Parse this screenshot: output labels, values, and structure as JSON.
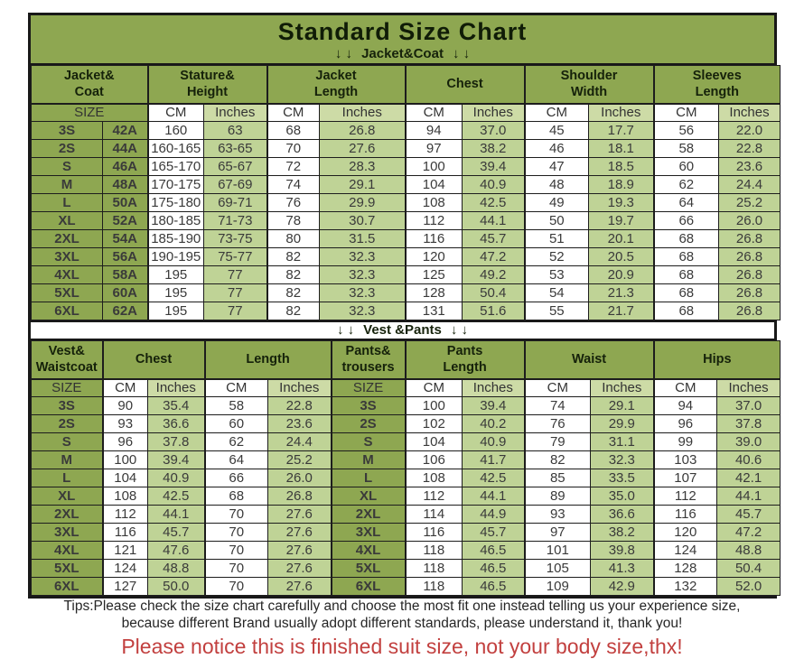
{
  "title": "Standard Size Chart",
  "jacket_divider": {
    "arrows_left": "↓ ↓",
    "label": "Jacket&Coat",
    "arrows_right": "↓ ↓"
  },
  "vest_divider": {
    "arrows_left": "↓ ↓",
    "label": "Vest &Pants",
    "arrows_right": "↓ ↓"
  },
  "footer": {
    "tips_line1": "Tips:Please check the size chart carefully and choose the most fit one instead telling us your experience size,",
    "tips_line2": "because different Brand usually adopt different standards, please understand it, thank you!",
    "notice": "Please notice this is finished suit size, not your body size,thx!"
  },
  "colors": {
    "header_green": "#8ea751",
    "data_cell_green": "#bfd396",
    "unit_cell_green": "#cddba6",
    "cell_white": "#ffffff",
    "border_black": "#181818",
    "notice_red": "#c2403f"
  },
  "chart_data": [
    {
      "type": "table",
      "title": "Jacket&Coat",
      "column_groups": [
        {
          "label": "Jacket&\nCoat",
          "span": 2
        },
        {
          "label": "Stature&\nHeight",
          "span": 2
        },
        {
          "label": "Jacket\nLength",
          "span": 2
        },
        {
          "label": "Chest",
          "span": 2
        },
        {
          "label": "Shoulder\nWidth",
          "span": 2
        },
        {
          "label": "Sleeves\nLength",
          "span": 2
        }
      ],
      "unit_row": [
        {
          "label": "SIZE",
          "span": 2,
          "kind": "size"
        },
        {
          "label": "CM",
          "span": 1,
          "kind": "cm"
        },
        {
          "label": "Inches",
          "span": 1,
          "kind": "inches"
        },
        {
          "label": "CM",
          "span": 1,
          "kind": "cm"
        },
        {
          "label": "Inches",
          "span": 1,
          "kind": "inches"
        },
        {
          "label": "CM",
          "span": 1,
          "kind": "cm"
        },
        {
          "label": "Inches",
          "span": 1,
          "kind": "inches"
        },
        {
          "label": "CM",
          "span": 1,
          "kind": "cm"
        },
        {
          "label": "Inches",
          "span": 1,
          "kind": "inches"
        },
        {
          "label": "CM",
          "span": 1,
          "kind": "cm"
        },
        {
          "label": "Inches",
          "span": 1,
          "kind": "inches"
        }
      ],
      "rows": [
        [
          "3S",
          "42A",
          "160",
          "63",
          "68",
          "26.8",
          "94",
          "37.0",
          "45",
          "17.7",
          "56",
          "22.0"
        ],
        [
          "2S",
          "44A",
          "160-165",
          "63-65",
          "70",
          "27.6",
          "97",
          "38.2",
          "46",
          "18.1",
          "58",
          "22.8"
        ],
        [
          "S",
          "46A",
          "165-170",
          "65-67",
          "72",
          "28.3",
          "100",
          "39.4",
          "47",
          "18.5",
          "60",
          "23.6"
        ],
        [
          "M",
          "48A",
          "170-175",
          "67-69",
          "74",
          "29.1",
          "104",
          "40.9",
          "48",
          "18.9",
          "62",
          "24.4"
        ],
        [
          "L",
          "50A",
          "175-180",
          "69-71",
          "76",
          "29.9",
          "108",
          "42.5",
          "49",
          "19.3",
          "64",
          "25.2"
        ],
        [
          "XL",
          "52A",
          "180-185",
          "71-73",
          "78",
          "30.7",
          "112",
          "44.1",
          "50",
          "19.7",
          "66",
          "26.0"
        ],
        [
          "2XL",
          "54A",
          "185-190",
          "73-75",
          "80",
          "31.5",
          "116",
          "45.7",
          "51",
          "20.1",
          "68",
          "26.8"
        ],
        [
          "3XL",
          "56A",
          "190-195",
          "75-77",
          "82",
          "32.3",
          "120",
          "47.2",
          "52",
          "20.5",
          "68",
          "26.8"
        ],
        [
          "4XL",
          "58A",
          "195",
          "77",
          "82",
          "32.3",
          "125",
          "49.2",
          "53",
          "20.9",
          "68",
          "26.8"
        ],
        [
          "5XL",
          "60A",
          "195",
          "77",
          "82",
          "32.3",
          "128",
          "50.4",
          "54",
          "21.3",
          "68",
          "26.8"
        ],
        [
          "6XL",
          "62A",
          "195",
          "77",
          "82",
          "32.3",
          "131",
          "51.6",
          "55",
          "21.7",
          "68",
          "26.8"
        ]
      ]
    },
    {
      "type": "table",
      "title": "Vest &Pants",
      "column_groups": [
        {
          "label": "Vest&\nWaistcoat",
          "span": 1
        },
        {
          "label": "Chest",
          "span": 2
        },
        {
          "label": "Length",
          "span": 2
        },
        {
          "label": "Pants&\ntrousers",
          "span": 1
        },
        {
          "label": "Pants\nLength",
          "span": 2
        },
        {
          "label": "Waist",
          "span": 2
        },
        {
          "label": "Hips",
          "span": 2
        }
      ],
      "unit_row": [
        {
          "label": "SIZE",
          "span": 1,
          "kind": "size"
        },
        {
          "label": "CM",
          "span": 1,
          "kind": "cm"
        },
        {
          "label": "Inches",
          "span": 1,
          "kind": "inches"
        },
        {
          "label": "CM",
          "span": 1,
          "kind": "cm"
        },
        {
          "label": "Inches",
          "span": 1,
          "kind": "inches"
        },
        {
          "label": "SIZE",
          "span": 1,
          "kind": "size"
        },
        {
          "label": "CM",
          "span": 1,
          "kind": "cm"
        },
        {
          "label": "Inches",
          "span": 1,
          "kind": "inches"
        },
        {
          "label": "CM",
          "span": 1,
          "kind": "cm"
        },
        {
          "label": "Inches",
          "span": 1,
          "kind": "inches"
        },
        {
          "label": "CM",
          "span": 1,
          "kind": "cm"
        },
        {
          "label": "Inches",
          "span": 1,
          "kind": "inches"
        }
      ],
      "rows": [
        [
          "3S",
          "90",
          "35.4",
          "58",
          "22.8",
          "3S",
          "100",
          "39.4",
          "74",
          "29.1",
          "94",
          "37.0"
        ],
        [
          "2S",
          "93",
          "36.6",
          "60",
          "23.6",
          "2S",
          "102",
          "40.2",
          "76",
          "29.9",
          "96",
          "37.8"
        ],
        [
          "S",
          "96",
          "37.8",
          "62",
          "24.4",
          "S",
          "104",
          "40.9",
          "79",
          "31.1",
          "99",
          "39.0"
        ],
        [
          "M",
          "100",
          "39.4",
          "64",
          "25.2",
          "M",
          "106",
          "41.7",
          "82",
          "32.3",
          "103",
          "40.6"
        ],
        [
          "L",
          "104",
          "40.9",
          "66",
          "26.0",
          "L",
          "108",
          "42.5",
          "85",
          "33.5",
          "107",
          "42.1"
        ],
        [
          "XL",
          "108",
          "42.5",
          "68",
          "26.8",
          "XL",
          "112",
          "44.1",
          "89",
          "35.0",
          "112",
          "44.1"
        ],
        [
          "2XL",
          "112",
          "44.1",
          "70",
          "27.6",
          "2XL",
          "114",
          "44.9",
          "93",
          "36.6",
          "116",
          "45.7"
        ],
        [
          "3XL",
          "116",
          "45.7",
          "70",
          "27.6",
          "3XL",
          "116",
          "45.7",
          "97",
          "38.2",
          "120",
          "47.2"
        ],
        [
          "4XL",
          "121",
          "47.6",
          "70",
          "27.6",
          "4XL",
          "118",
          "46.5",
          "101",
          "39.8",
          "124",
          "48.8"
        ],
        [
          "5XL",
          "124",
          "48.8",
          "70",
          "27.6",
          "5XL",
          "118",
          "46.5",
          "105",
          "41.3",
          "128",
          "50.4"
        ],
        [
          "6XL",
          "127",
          "50.0",
          "70",
          "27.6",
          "6XL",
          "118",
          "46.5",
          "109",
          "42.9",
          "132",
          "52.0"
        ]
      ]
    }
  ]
}
